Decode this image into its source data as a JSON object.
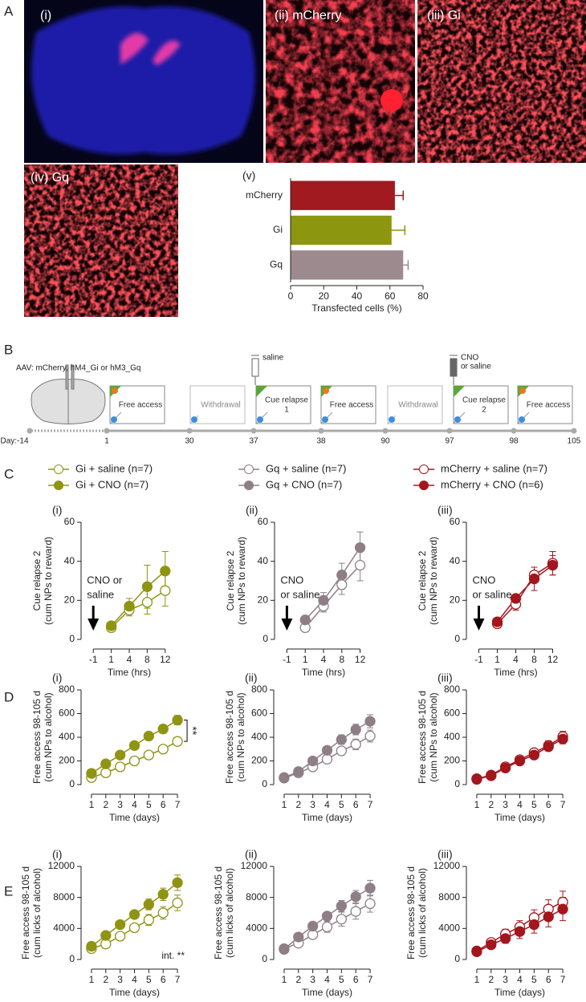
{
  "panel_letters": [
    "A",
    "B",
    "C",
    "D",
    "E"
  ],
  "images": [
    "(i)",
    "(ii) mCherry",
    "(iii) Gi",
    "(iv) Gq"
  ],
  "timeline": {
    "aav_label": "AAV: mCherry, hM4_Gi or hM3_Gq",
    "boxes": [
      [
        "Free access"
      ],
      [
        "Withdrawal"
      ],
      [
        "Cue relapse",
        "1"
      ],
      [
        "Free access"
      ],
      [
        "Withdrawal"
      ],
      [
        "Cue relapse",
        "2"
      ],
      [
        "Free access"
      ]
    ],
    "days": [
      "Day:-14",
      "1",
      "30",
      "37",
      "38",
      "90",
      "97",
      "98",
      "105"
    ],
    "syringe_1": [
      "saline"
    ],
    "syringe_2": [
      "CNO",
      "or saline"
    ]
  },
  "chart_data": [
    {
      "type": "hbar",
      "label": "(v)",
      "categories": [
        "mCherry",
        "Gi",
        "Gq"
      ],
      "values": [
        63,
        61,
        68
      ],
      "errors": [
        5,
        8,
        3
      ],
      "colors": [
        "#a01a20",
        "#8c960e",
        "#9c8a8f"
      ],
      "xlim": [
        0,
        80
      ],
      "xticks": [
        0,
        20,
        40,
        60,
        80
      ],
      "xlabel": "Transfected cells (%)"
    },
    {
      "type": "line",
      "label": "(i)",
      "categories": [
        "-1",
        "1",
        "4",
        "8",
        "12"
      ],
      "ylim": [
        0,
        60
      ],
      "yticks": [
        0,
        20,
        40,
        60
      ],
      "ylabel": [
        "Cue relapse 2",
        "(cum NPs to reward)"
      ],
      "xlabel": "Time (hrs)",
      "arrow_label": [
        "CNO or",
        "saline"
      ],
      "series": [
        {
          "name": "Gi + saline (n=7)",
          "color": "#8f9412",
          "marker": "open",
          "values": [
            null,
            6,
            15,
            19,
            25
          ],
          "errors": [
            null,
            1,
            3,
            6,
            8
          ]
        },
        {
          "name": "Gi + CNO (n=7)",
          "color": "#8f9412",
          "marker": "filled",
          "values": [
            null,
            7,
            17,
            27,
            35
          ],
          "errors": [
            null,
            1,
            4,
            11,
            10
          ]
        }
      ]
    },
    {
      "type": "line",
      "label": "(ii)",
      "categories": [
        "-1",
        "1",
        "4",
        "8",
        "12"
      ],
      "ylim": [
        0,
        60
      ],
      "yticks": [
        0,
        20,
        40,
        60
      ],
      "ylabel": [
        "Cue relapse 2",
        "(cum NPs to reward)"
      ],
      "xlabel": "Time (hrs)",
      "arrow_label": [
        "CNO",
        "or saline"
      ],
      "series": [
        {
          "name": "Gq + saline (n=7)",
          "color": "#8e7f87",
          "marker": "open",
          "values": [
            null,
            6,
            17,
            28,
            38
          ],
          "errors": [
            null,
            1,
            3,
            5,
            8
          ]
        },
        {
          "name": "Gq + CNO (n=7)",
          "color": "#8e7f87",
          "marker": "filled",
          "values": [
            null,
            10,
            20,
            33,
            47
          ],
          "errors": [
            null,
            2,
            4,
            6,
            8
          ]
        }
      ]
    },
    {
      "type": "line",
      "label": "(iii)",
      "categories": [
        "-1",
        "1",
        "4",
        "8",
        "12"
      ],
      "ylim": [
        0,
        60
      ],
      "yticks": [
        0,
        20,
        40,
        60
      ],
      "ylabel": [
        "Cue relapse 2",
        "(cum NPs to reward)"
      ],
      "xlabel": "Time (hrs)",
      "arrow_label": [
        "CNO",
        "or saline"
      ],
      "series": [
        {
          "name": "mCherry + saline (n=7)",
          "color": "#a3161d",
          "marker": "open",
          "values": [
            null,
            8,
            18,
            33,
            39
          ],
          "errors": [
            null,
            1,
            3,
            4,
            6
          ]
        },
        {
          "name": "mCherry + CNO (n=6)",
          "color": "#a3161d",
          "marker": "filled",
          "values": [
            null,
            9,
            21,
            31,
            38
          ],
          "errors": [
            null,
            2,
            2,
            6,
            5
          ]
        }
      ]
    },
    {
      "type": "line",
      "label": "(i)",
      "categories": [
        "1",
        "2",
        "3",
        "4",
        "5",
        "6",
        "7"
      ],
      "ylim": [
        0,
        800
      ],
      "yticks": [
        0,
        200,
        400,
        600,
        800
      ],
      "ylabel": [
        "Free access 98-105 d",
        "(cum NPs to alcohol)"
      ],
      "xlabel": "Time (days)",
      "significance": "**",
      "series": [
        {
          "color": "#8f9412",
          "marker": "open",
          "values": [
            60,
            100,
            150,
            200,
            250,
            300,
            365
          ],
          "errors": [
            10,
            12,
            15,
            20,
            25,
            30,
            35
          ]
        },
        {
          "color": "#8f9412",
          "marker": "filled",
          "values": [
            95,
            175,
            250,
            330,
            410,
            470,
            545
          ],
          "errors": [
            12,
            15,
            20,
            25,
            30,
            35,
            40
          ]
        }
      ]
    },
    {
      "type": "line",
      "label": "(ii)",
      "categories": [
        "1",
        "2",
        "3",
        "4",
        "5",
        "6",
        "7"
      ],
      "ylim": [
        0,
        800
      ],
      "yticks": [
        0,
        200,
        400,
        600,
        800
      ],
      "ylabel": [
        "Free access 98-105 d",
        "(cum NPs to alcohol)"
      ],
      "xlabel": "Time (days)",
      "series": [
        {
          "color": "#8e7f87",
          "marker": "open",
          "values": [
            55,
            100,
            150,
            215,
            285,
            340,
            410
          ],
          "errors": [
            10,
            15,
            20,
            30,
            35,
            45,
            50
          ]
        },
        {
          "color": "#8e7f87",
          "marker": "filled",
          "values": [
            60,
            110,
            200,
            290,
            380,
            465,
            535
          ],
          "errors": [
            10,
            15,
            25,
            30,
            40,
            45,
            55
          ]
        }
      ]
    },
    {
      "type": "line",
      "label": "(iii)",
      "categories": [
        "1",
        "2",
        "3",
        "4",
        "5",
        "6",
        "7"
      ],
      "ylim": [
        0,
        800
      ],
      "yticks": [
        0,
        200,
        400,
        600,
        800
      ],
      "ylabel": [
        "Free access 98-105 d",
        "(cum NPs to alcohol)"
      ],
      "xlabel": "Time (days)",
      "series": [
        {
          "color": "#a3161d",
          "marker": "open",
          "values": [
            50,
            80,
            150,
            210,
            270,
            330,
            405
          ],
          "errors": [
            8,
            12,
            18,
            25,
            30,
            40,
            45
          ]
        },
        {
          "color": "#a3161d",
          "marker": "filled",
          "values": [
            45,
            75,
            140,
            200,
            250,
            320,
            385
          ],
          "errors": [
            8,
            12,
            18,
            25,
            30,
            35,
            40
          ]
        }
      ]
    },
    {
      "type": "line",
      "label": "(i)",
      "categories": [
        "1",
        "2",
        "3",
        "4",
        "5",
        "6",
        "7"
      ],
      "ylim": [
        0,
        12000
      ],
      "yticks": [
        0,
        4000,
        8000,
        12000
      ],
      "ylabel": [
        "Free access 98-105 d",
        "(cum licks of alcohol)"
      ],
      "xlabel": "Time (days)",
      "note": "int. **",
      "series": [
        {
          "color": "#8f9412",
          "marker": "open",
          "values": [
            1400,
            2000,
            3000,
            4100,
            5100,
            6000,
            7300
          ],
          "errors": [
            200,
            300,
            400,
            500,
            700,
            800,
            1000
          ]
        },
        {
          "color": "#8f9412",
          "marker": "filled",
          "values": [
            1700,
            3100,
            4500,
            5800,
            7100,
            8400,
            9900
          ],
          "errors": [
            200,
            300,
            400,
            500,
            700,
            800,
            1000
          ]
        }
      ]
    },
    {
      "type": "line",
      "label": "(ii)",
      "categories": [
        "1",
        "2",
        "3",
        "4",
        "5",
        "6",
        "7"
      ],
      "ylim": [
        0,
        12000
      ],
      "yticks": [
        0,
        4000,
        8000,
        12000
      ],
      "ylabel": [
        "Free access 98-105 d",
        "(cum licks of alcohol)"
      ],
      "xlabel": "Time (days)",
      "series": [
        {
          "color": "#8e7f87",
          "marker": "open",
          "values": [
            1400,
            2100,
            3200,
            4200,
            5200,
            6200,
            7200
          ],
          "errors": [
            200,
            300,
            500,
            700,
            900,
            1000,
            1100
          ]
        },
        {
          "color": "#8e7f87",
          "marker": "filled",
          "values": [
            1300,
            2900,
            4300,
            5600,
            6900,
            8100,
            9200
          ],
          "errors": [
            200,
            300,
            400,
            500,
            700,
            800,
            1000
          ]
        }
      ]
    },
    {
      "type": "line",
      "label": "(iii)",
      "categories": [
        "1",
        "2",
        "3",
        "4",
        "5",
        "6",
        "7"
      ],
      "ylim": [
        0,
        12000
      ],
      "yticks": [
        0,
        4000,
        8000,
        12000
      ],
      "ylabel": [
        "Free access 98-105 d",
        "(cum licks of alcohol)"
      ],
      "xlabel": "Time (days)",
      "series": [
        {
          "color": "#a3161d",
          "marker": "open",
          "values": [
            1100,
            2200,
            3300,
            4200,
            5400,
            6500,
            7400
          ],
          "errors": [
            200,
            400,
            600,
            800,
            1000,
            1200,
            1400
          ]
        },
        {
          "color": "#a3161d",
          "marker": "filled",
          "values": [
            1000,
            1900,
            2700,
            3600,
            4500,
            5500,
            6500
          ],
          "errors": [
            200,
            400,
            600,
            900,
            1100,
            1300,
            1500
          ]
        }
      ]
    }
  ]
}
